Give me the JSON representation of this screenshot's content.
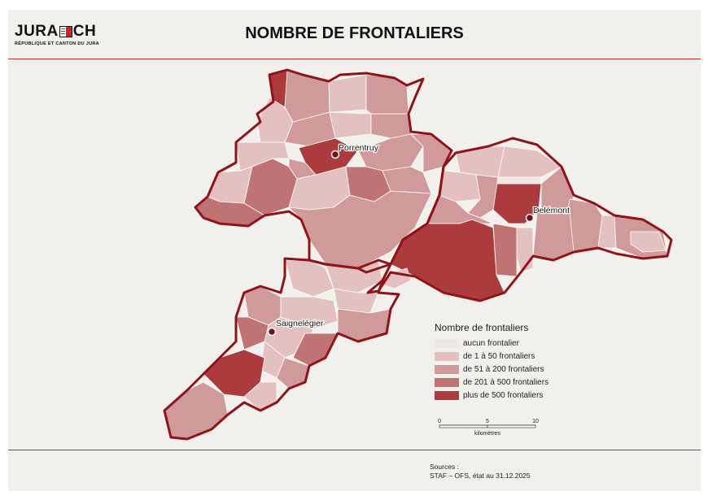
{
  "header": {
    "logo_main_left": "JURA",
    "logo_main_right": "CH",
    "logo_sub": "RÉPUBLIQUE ET CANTON DU JURA",
    "title": "NOMBRE DE FRONTALIERS"
  },
  "colors": {
    "border": "#9b1c1f",
    "class0": "#f0e6e6",
    "class1": "#e3c1c1",
    "class2": "#d09a9a",
    "class3": "#c07373",
    "class4": "#ac3b3e"
  },
  "cities": [
    {
      "name": "Porrentruy"
    },
    {
      "name": "Delémont"
    },
    {
      "name": "Saignelégier"
    }
  ],
  "legend": {
    "title": "Nombre de frontaliers",
    "items": [
      {
        "label": "aucun frontalier",
        "class": 0
      },
      {
        "label": "de 1 à 50 frontaliers",
        "class": 1
      },
      {
        "label": "de 51 à 200 frontaliers",
        "class": 2
      },
      {
        "label": "de 201 à 500 frontaliers",
        "class": 3
      },
      {
        "label": "plus de 500 frontaliers",
        "class": 4
      }
    ]
  },
  "scale": {
    "ticks": [
      "0",
      "5",
      "10"
    ],
    "unit": "kilomètres"
  },
  "footer": {
    "sources_label": "Sources :",
    "sources_text": "STAF – OFS, état au 31.12.2025"
  }
}
